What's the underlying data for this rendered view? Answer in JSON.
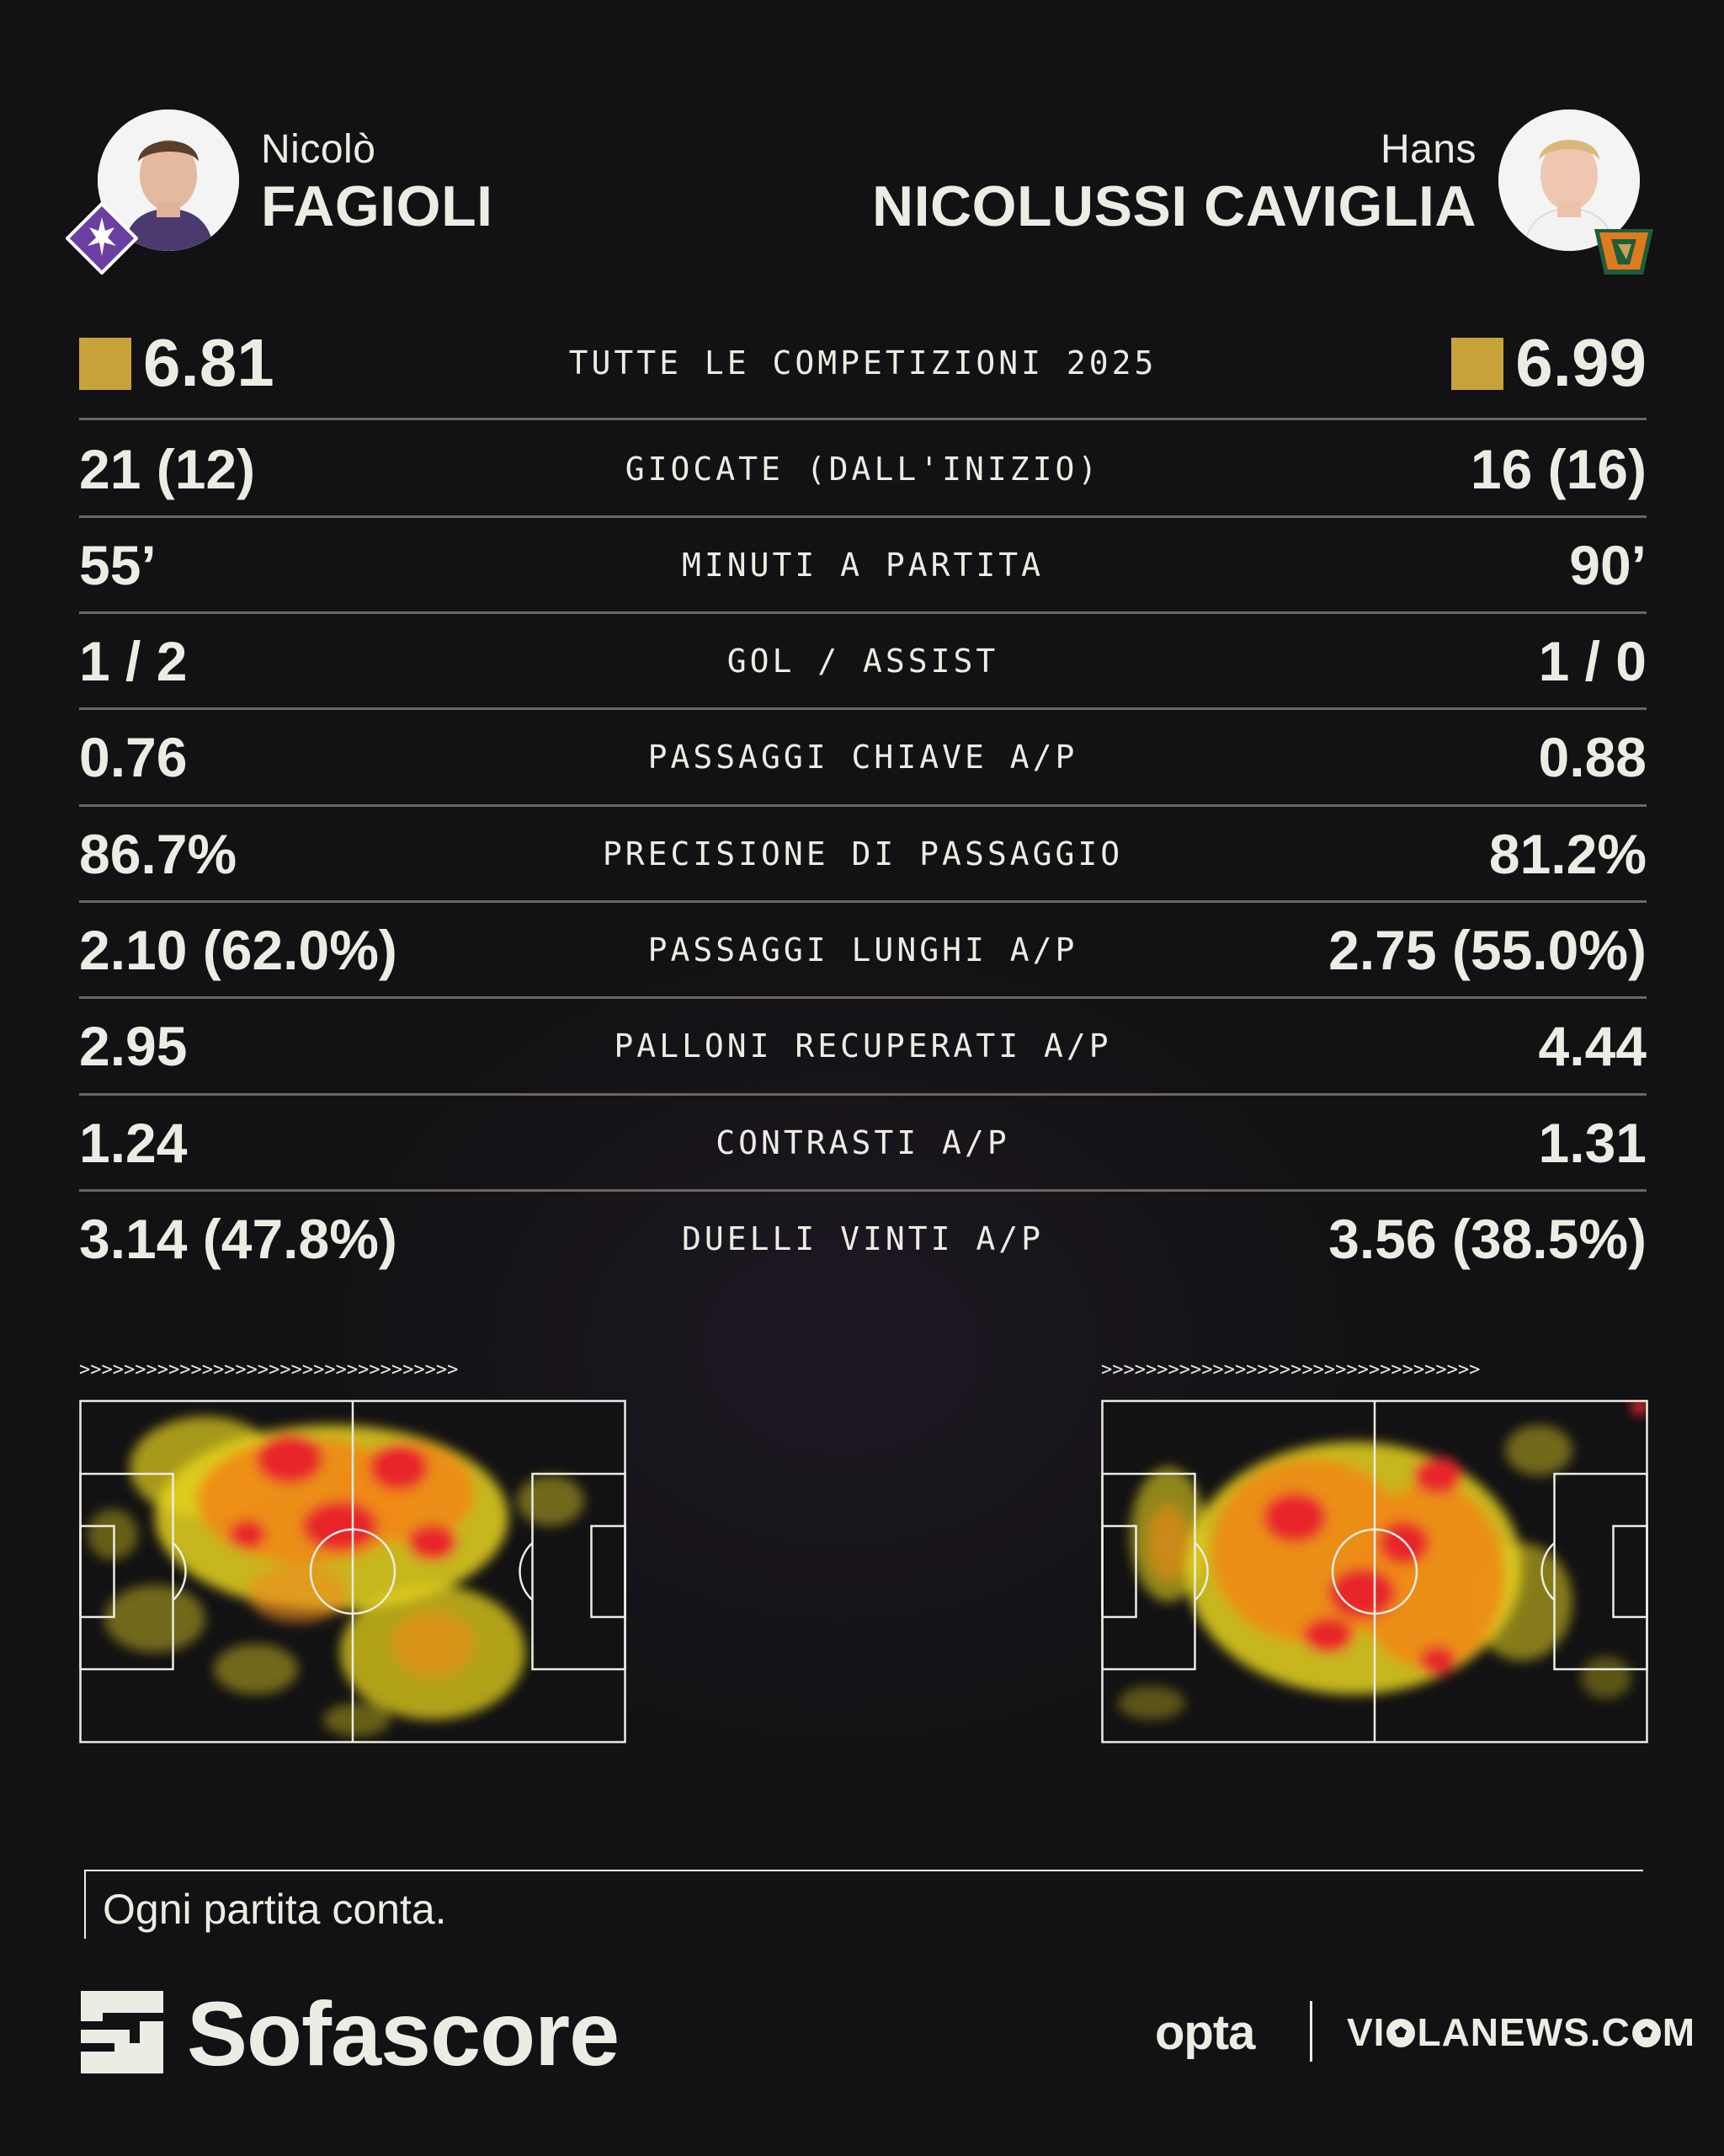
{
  "players": {
    "left": {
      "first_name": "Nicolò",
      "last_name": "FAGIOLI",
      "club_crest": "fiorentina-lily-crest",
      "crest_color": "#6B3FA0"
    },
    "right": {
      "first_name": "Hans",
      "last_name": "NICOLUSSI CAVIGLIA",
      "club_crest": "venezia-winged-lion-crest",
      "crest_color": "#E07A1F"
    }
  },
  "stats": [
    {
      "label": "TUTTE LE COMPETIZIONI 2025",
      "left": "6.81",
      "right": "6.99",
      "rating": true
    },
    {
      "label": "GIOCATE (DALL'INIZIO)",
      "left": "21 (12)",
      "right": "16 (16)"
    },
    {
      "label": "MINUTI A PARTITA",
      "left": "55’",
      "right": "90’"
    },
    {
      "label": "GOL / ASSIST",
      "left": "1 / 2",
      "right": "1 / 0"
    },
    {
      "label": "PASSAGGI CHIAVE A/P",
      "left": "0.76",
      "right": "0.88"
    },
    {
      "label": "PRECISIONE DI PASSAGGIO",
      "left": "86.7%",
      "right": "81.2%"
    },
    {
      "label": "PASSAGGI LUNGHI A/P",
      "left": "2.10 (62.0%)",
      "right": "2.75 (55.0%)"
    },
    {
      "label": "PALLONI RECUPERATI A/P",
      "left": "2.95",
      "right": "4.44"
    },
    {
      "label": "CONTRASTI A/P",
      "left": "1.24",
      "right": "1.31"
    },
    {
      "label": "DUELLI VINTI A/P",
      "left": "3.14 (47.8%)",
      "right": "3.56 (38.5%)"
    }
  ],
  "heatmap_arrows": ">>>>>>>>>>>>>>>>>>>>>>>>>>>>>>>>>>",
  "footer": {
    "tagline": "Ogni partita conta.",
    "brand": "Sofascore",
    "opta": "opta",
    "site_prefix": "VI",
    "site_suffix": "LANEWS.C",
    "site_end": "M"
  },
  "colors": {
    "rating_badge": "#C7A33A",
    "background": "#121113",
    "text": "#ECECE4"
  }
}
